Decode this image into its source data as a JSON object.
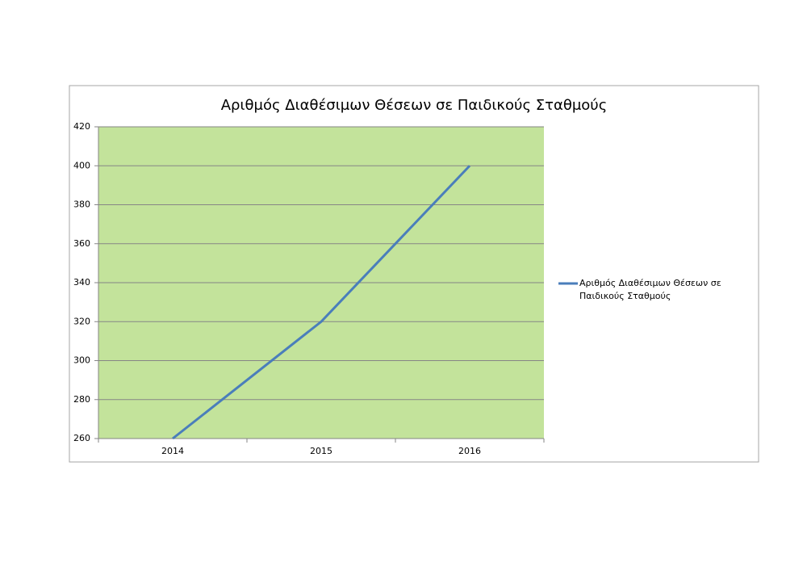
{
  "chart_data": {
    "type": "line",
    "title": "Αριθμός Διαθέσιμων Θέσεων σε Παιδικούς Σταθμούς",
    "categories": [
      "2014",
      "2015",
      "2016"
    ],
    "series": [
      {
        "name": "Αριθμός Διαθέσιμων Θέσεων σε Παιδικούς Σταθμούς",
        "color": "#4a7ebb",
        "values": [
          260,
          320,
          400
        ]
      }
    ],
    "ylim": [
      260,
      420
    ],
    "yticks": [
      260,
      280,
      300,
      320,
      340,
      360,
      380,
      400,
      420
    ],
    "grid": true,
    "plot_background": "#c3e39b",
    "legend": "right"
  }
}
